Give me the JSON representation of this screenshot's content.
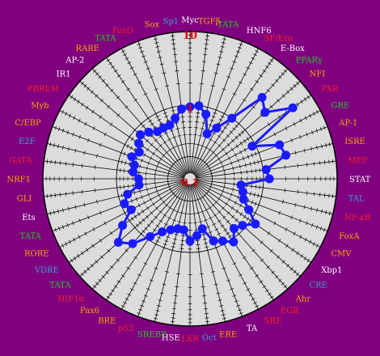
{
  "colors": {
    "background": "#800080",
    "plot_fill": "#dcdcdc",
    "series": "#1a1aff",
    "grid": "#000000",
    "radial_label": "#e00000"
  },
  "chart_data": {
    "type": "radar",
    "scale": "log",
    "rlim": [
      0.1,
      10
    ],
    "radial_tick_labels": [
      "0.1",
      "1",
      "10"
    ],
    "grid": true,
    "categories": [
      {
        "name": "Myc",
        "color": "#ffffff"
      },
      {
        "name": "TGFβ",
        "color": "#ffa500"
      },
      {
        "name": "TATA",
        "color": "#22cc22"
      },
      {
        "name": "HNF6",
        "color": "#ffffff"
      },
      {
        "name": "SF/Erα",
        "color": "#ff2020"
      },
      {
        "name": "E-Box",
        "color": "#ffffff"
      },
      {
        "name": "PPARγ",
        "color": "#22cc22"
      },
      {
        "name": "NFI",
        "color": "#ffa500"
      },
      {
        "name": "PXR",
        "color": "#ff2020"
      },
      {
        "name": "GRE",
        "color": "#22cc22"
      },
      {
        "name": "AP-1",
        "color": "#ffa500"
      },
      {
        "name": "ISRE",
        "color": "#ffa500"
      },
      {
        "name": "MEF",
        "color": "#ff2020"
      },
      {
        "name": "STAT",
        "color": "#ffffff"
      },
      {
        "name": "TAL",
        "color": "#33aacc"
      },
      {
        "name": "NF-κB",
        "color": "#ff2020"
      },
      {
        "name": "FoxA",
        "color": "#ffa500"
      },
      {
        "name": "CMV",
        "color": "#ffa500"
      },
      {
        "name": "Xbp1",
        "color": "#ffffff"
      },
      {
        "name": "CRE",
        "color": "#33aacc"
      },
      {
        "name": "Ahr",
        "color": "#ffa500"
      },
      {
        "name": "EGR",
        "color": "#ff2020"
      },
      {
        "name": "SRE",
        "color": "#ff2020"
      },
      {
        "name": "TA",
        "color": "#ffffff"
      },
      {
        "name": "ERE",
        "color": "#ffa500"
      },
      {
        "name": "Oct",
        "color": "#33aacc"
      },
      {
        "name": "LXR",
        "color": "#ff2020"
      },
      {
        "name": "HSE",
        "color": "#ffffff"
      },
      {
        "name": "SREBP",
        "color": "#22cc22"
      },
      {
        "name": "p53",
        "color": "#ff2020"
      },
      {
        "name": "BRE",
        "color": "#ffa500"
      },
      {
        "name": "Pax6",
        "color": "#ffa500"
      },
      {
        "name": "HIF1α",
        "color": "#ff2020"
      },
      {
        "name": "TATA",
        "color": "#22cc22"
      },
      {
        "name": "VDRE",
        "color": "#33aacc"
      },
      {
        "name": "RORE",
        "color": "#ffa500"
      },
      {
        "name": "TATA",
        "color": "#22cc22"
      },
      {
        "name": "Ets",
        "color": "#ffffff"
      },
      {
        "name": "GLI",
        "color": "#ffa500"
      },
      {
        "name": "NRF1",
        "color": "#ffa500"
      },
      {
        "name": "GATA",
        "color": "#ff2020"
      },
      {
        "name": "E2F",
        "color": "#33aacc"
      },
      {
        "name": "C/EBP",
        "color": "#ffa500"
      },
      {
        "name": "Myb",
        "color": "#ffa500"
      },
      {
        "name": "PBREM",
        "color": "#ff2020"
      },
      {
        "name": "IR1",
        "color": "#ffffff"
      },
      {
        "name": "AP-2",
        "color": "#ffffff"
      },
      {
        "name": "RARE",
        "color": "#ffa500"
      },
      {
        "name": "TATA",
        "color": "#22cc22"
      },
      {
        "name": "FoxO",
        "color": "#ff2020"
      },
      {
        "name": "Sox",
        "color": "#ffa500"
      },
      {
        "name": "Sp1",
        "color": "#33aacc"
      }
    ],
    "values": [
      0.95,
      1.0,
      0.8,
      0.45,
      0.6,
      1.0,
      3.0,
      2.3,
      5.0,
      0.9,
      2.0,
      2.2,
      1.1,
      1.2,
      0.5,
      0.55,
      0.6,
      0.8,
      1.2,
      0.9,
      0.8,
      1.1,
      0.9,
      0.8,
      0.5,
      0.6,
      0.7,
      0.5,
      0.5,
      0.55,
      0.65,
      0.9,
      1.5,
      2.0,
      1.3,
      0.8,
      0.9,
      0.75,
      0.5,
      0.5,
      0.6,
      0.6,
      0.7,
      0.6,
      0.7,
      0.8,
      0.7,
      0.6,
      0.6,
      0.6,
      0.7,
      0.9
    ]
  }
}
